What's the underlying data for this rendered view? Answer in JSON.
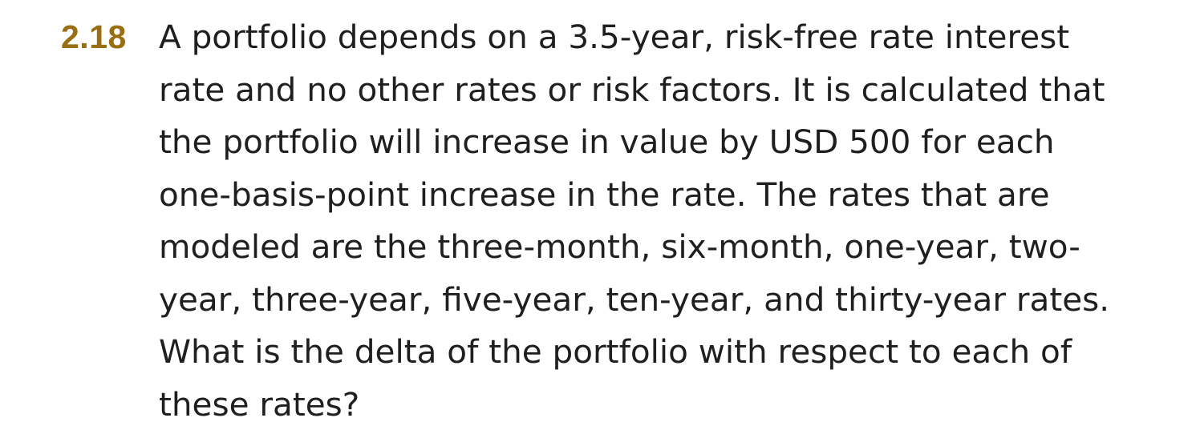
{
  "problem": {
    "number": "2.18",
    "lines": [
      "A portfolio depends on a 3.5-year, risk-free rate interest",
      "rate and no other rates or risk factors. It is calculated that",
      "the portfolio will increase in value by USD 500 for each",
      "one-basis-point increase in the rate. The rates that are",
      "modeled are the three-month, six-month, one-year, two-",
      "year, three-year, five-year, ten-year, and thirty-year rates.",
      "What is the delta of the portfolio with respect to each of",
      "these rates?"
    ],
    "number_color": "#9a6e12",
    "text_color": "#1f1f1f"
  }
}
